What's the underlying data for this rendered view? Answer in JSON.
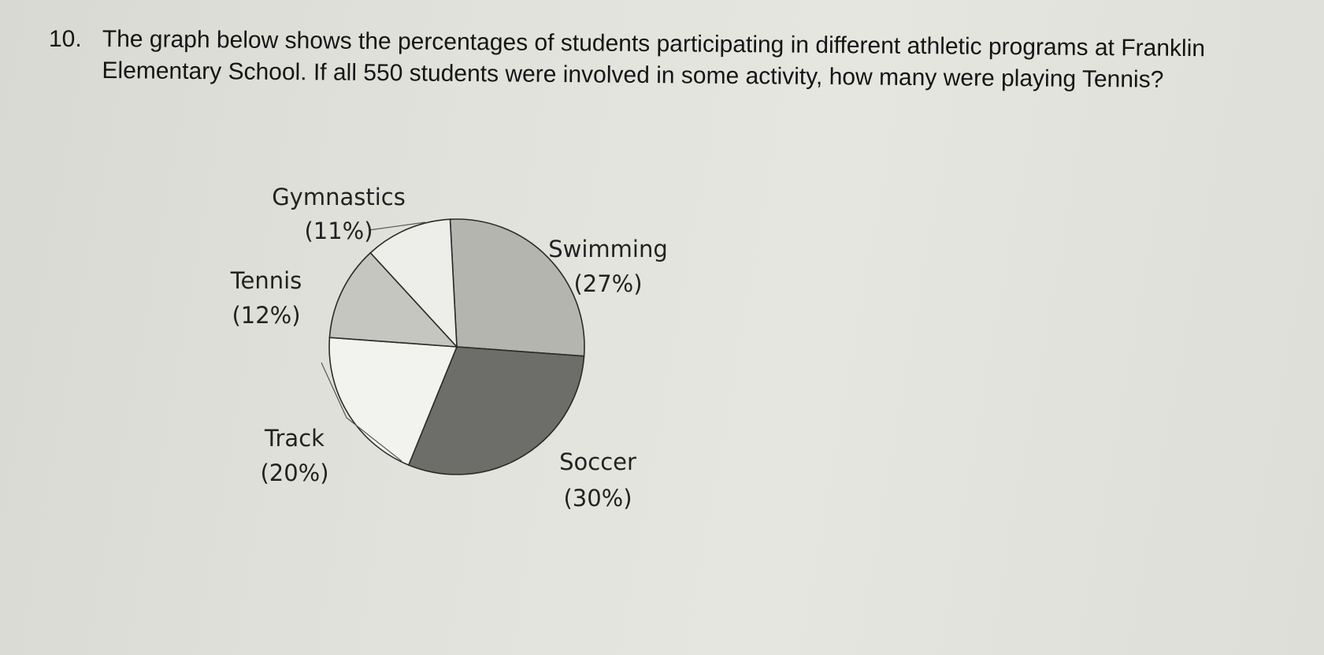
{
  "question": {
    "number": "10.",
    "text": "The graph below shows the percentages of students participating in different athletic programs at Franklin Elementary School.  If all 550 students were involved in some activity, how many were playing Tennis?"
  },
  "chart_data": {
    "type": "pie",
    "title": "",
    "slices": [
      {
        "label": "Swimming",
        "percent_label": "(27%)",
        "value": 27,
        "color": "#b5b5b0"
      },
      {
        "label": "Soccer",
        "percent_label": "(30%)",
        "value": 30,
        "color": "#6d6d6a"
      },
      {
        "label": "Track",
        "percent_label": "(20%)",
        "value": 20,
        "color": "#f2f2ee"
      },
      {
        "label": "Tennis",
        "percent_label": "(12%)",
        "value": 12,
        "color": "#c6c6c1"
      },
      {
        "label": "Gymnastics",
        "percent_label": "(11%)",
        "value": 11,
        "color": "#ededea"
      }
    ]
  }
}
